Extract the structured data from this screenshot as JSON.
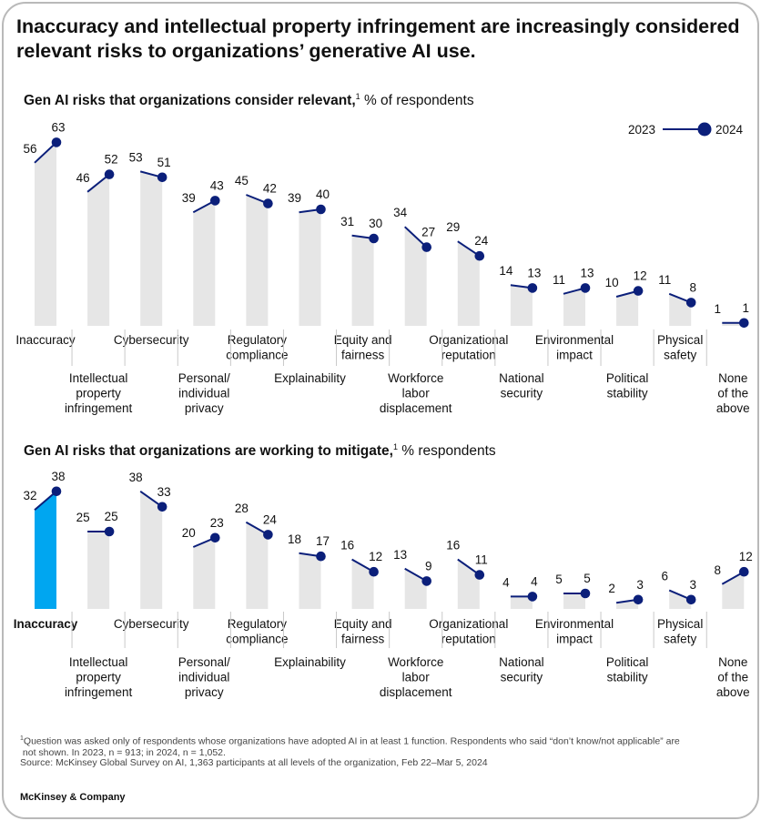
{
  "title": "Inaccuracy and intellectual property infringement are increasingly considered relevant risks to organizations’ generative AI use.",
  "legend": {
    "label_2023": "2023",
    "label_2024": "2024",
    "color_2024": "#0b1f7a"
  },
  "colors": {
    "bar": "#e6e6e6",
    "line": "#0b1f7a",
    "highlight": "#00a6f0"
  },
  "chart_data": [
    {
      "type": "bar",
      "title": "Gen AI risks that organizations consider relevant,",
      "title_note": "1",
      "unit": "% of respondents",
      "categories": [
        "Inaccuracy",
        "Intellectual property infringement",
        "Cybersecurity",
        "Personal/ individual privacy",
        "Regulatory compliance",
        "Explainability",
        "Equity and fairness",
        "Workforce labor displacement",
        "Organizational reputation",
        "National security",
        "Environmental impact",
        "Political stability",
        "Physical safety",
        "None of the above"
      ],
      "category_lines": [
        [
          "Inaccuracy"
        ],
        [
          "Intellectual",
          "property",
          "infringement"
        ],
        [
          "Cybersecurity"
        ],
        [
          "Personal/",
          "individual",
          "privacy"
        ],
        [
          "Regulatory",
          "compliance"
        ],
        [
          "Explainability"
        ],
        [
          "Equity and",
          "fairness"
        ],
        [
          "Workforce",
          "labor",
          "displacement"
        ],
        [
          "Organizational",
          "reputation"
        ],
        [
          "National",
          "security"
        ],
        [
          "Environmental",
          "impact"
        ],
        [
          "Political",
          "stability"
        ],
        [
          "Physical",
          "safety"
        ],
        [
          "None",
          "of the",
          "above"
        ]
      ],
      "series": [
        {
          "name": "2023",
          "values": [
            56,
            46,
            53,
            39,
            45,
            39,
            31,
            34,
            29,
            14,
            11,
            10,
            11,
            1
          ]
        },
        {
          "name": "2024",
          "values": [
            63,
            52,
            51,
            43,
            42,
            40,
            30,
            27,
            24,
            13,
            13,
            12,
            8,
            1
          ]
        }
      ],
      "highlight": null
    },
    {
      "type": "bar",
      "title": "Gen AI risks that organizations are working to mitigate,",
      "title_note": "1",
      "unit": "% respondents",
      "categories": [
        "Inaccuracy",
        "Intellectual property infringement",
        "Cybersecurity",
        "Personal/ individual privacy",
        "Regulatory compliance",
        "Explainability",
        "Equity and fairness",
        "Workforce labor displacement",
        "Organizational reputation",
        "National security",
        "Environmental impact",
        "Political stability",
        "Physical safety",
        "None of the above"
      ],
      "category_lines": [
        [
          "Inaccuracy"
        ],
        [
          "Intellectual",
          "property",
          "infringement"
        ],
        [
          "Cybersecurity"
        ],
        [
          "Personal/",
          "individual",
          "privacy"
        ],
        [
          "Regulatory",
          "compliance"
        ],
        [
          "Explainability"
        ],
        [
          "Equity and",
          "fairness"
        ],
        [
          "Workforce",
          "labor",
          "displacement"
        ],
        [
          "Organizational",
          "reputation"
        ],
        [
          "National",
          "security"
        ],
        [
          "Environmental",
          "impact"
        ],
        [
          "Political",
          "stability"
        ],
        [
          "Physical",
          "safety"
        ],
        [
          "None",
          "of the",
          "above"
        ]
      ],
      "series": [
        {
          "name": "2023",
          "values": [
            32,
            25,
            38,
            20,
            28,
            18,
            16,
            13,
            16,
            4,
            5,
            2,
            6,
            8
          ]
        },
        {
          "name": "2024",
          "values": [
            38,
            25,
            33,
            23,
            24,
            17,
            12,
            9,
            11,
            4,
            5,
            3,
            3,
            12
          ]
        }
      ],
      "highlight": 0
    }
  ],
  "footnote": {
    "line1": "Question was asked only of respondents whose organizations have adopted AI in at least 1 function. Respondents who said “don’t know/not applicable” are",
    "line2": "not shown. In 2023, n = 913; in 2024, n = 1,052.",
    "source": "Source: McKinsey Global Survey on AI, 1,363 participants at all levels of the organization, Feb 22–Mar 5, 2024",
    "note_mark": "1"
  },
  "brand": "McKinsey & Company"
}
